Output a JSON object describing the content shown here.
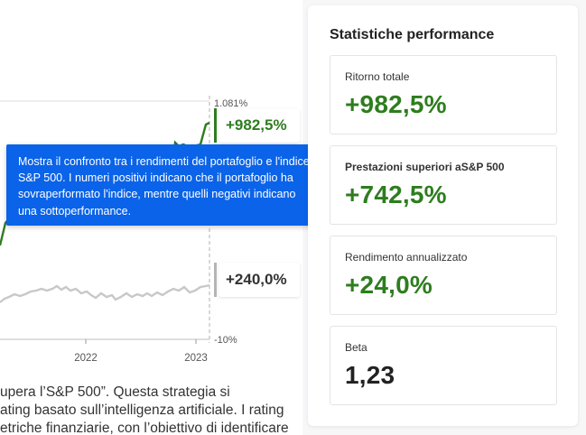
{
  "chart": {
    "y_max_label": "1.081%",
    "y_min_label": "-10%",
    "x_ticks": [
      "2022",
      "2023"
    ],
    "portfolio_end_label": "+982,5%",
    "sp500_end_label": "+240,0%",
    "colors": {
      "portfolio": "#2e7d1f",
      "sp500": "#c8c8c8"
    }
  },
  "tooltip": {
    "text": "Mostra il confronto tra i rendimenti del portafoglio e l'indice S&P 500. I numeri positivi indicano che il portafoglio ha sovraperformato l'indice, mentre quelli negativi indicano una sottoperformance."
  },
  "description": {
    "lines": [
      "upera l’S&P 500”. Questa strategia si",
      "ating basato sull’intelligenza artificiale. I rating",
      "etriche finanziarie, con l’obiettivo di identificare"
    ]
  },
  "stats": {
    "title": "Statistiche performance",
    "cards": [
      {
        "label": "Ritorno totale",
        "value": "+982,5%"
      },
      {
        "label": "Prestazioni superiori aS&P 500",
        "value": "+742,5%"
      },
      {
        "label": "Rendimento annualizzato",
        "value": "+24,0%"
      },
      {
        "label": "Beta",
        "value": "1,23"
      }
    ]
  }
}
